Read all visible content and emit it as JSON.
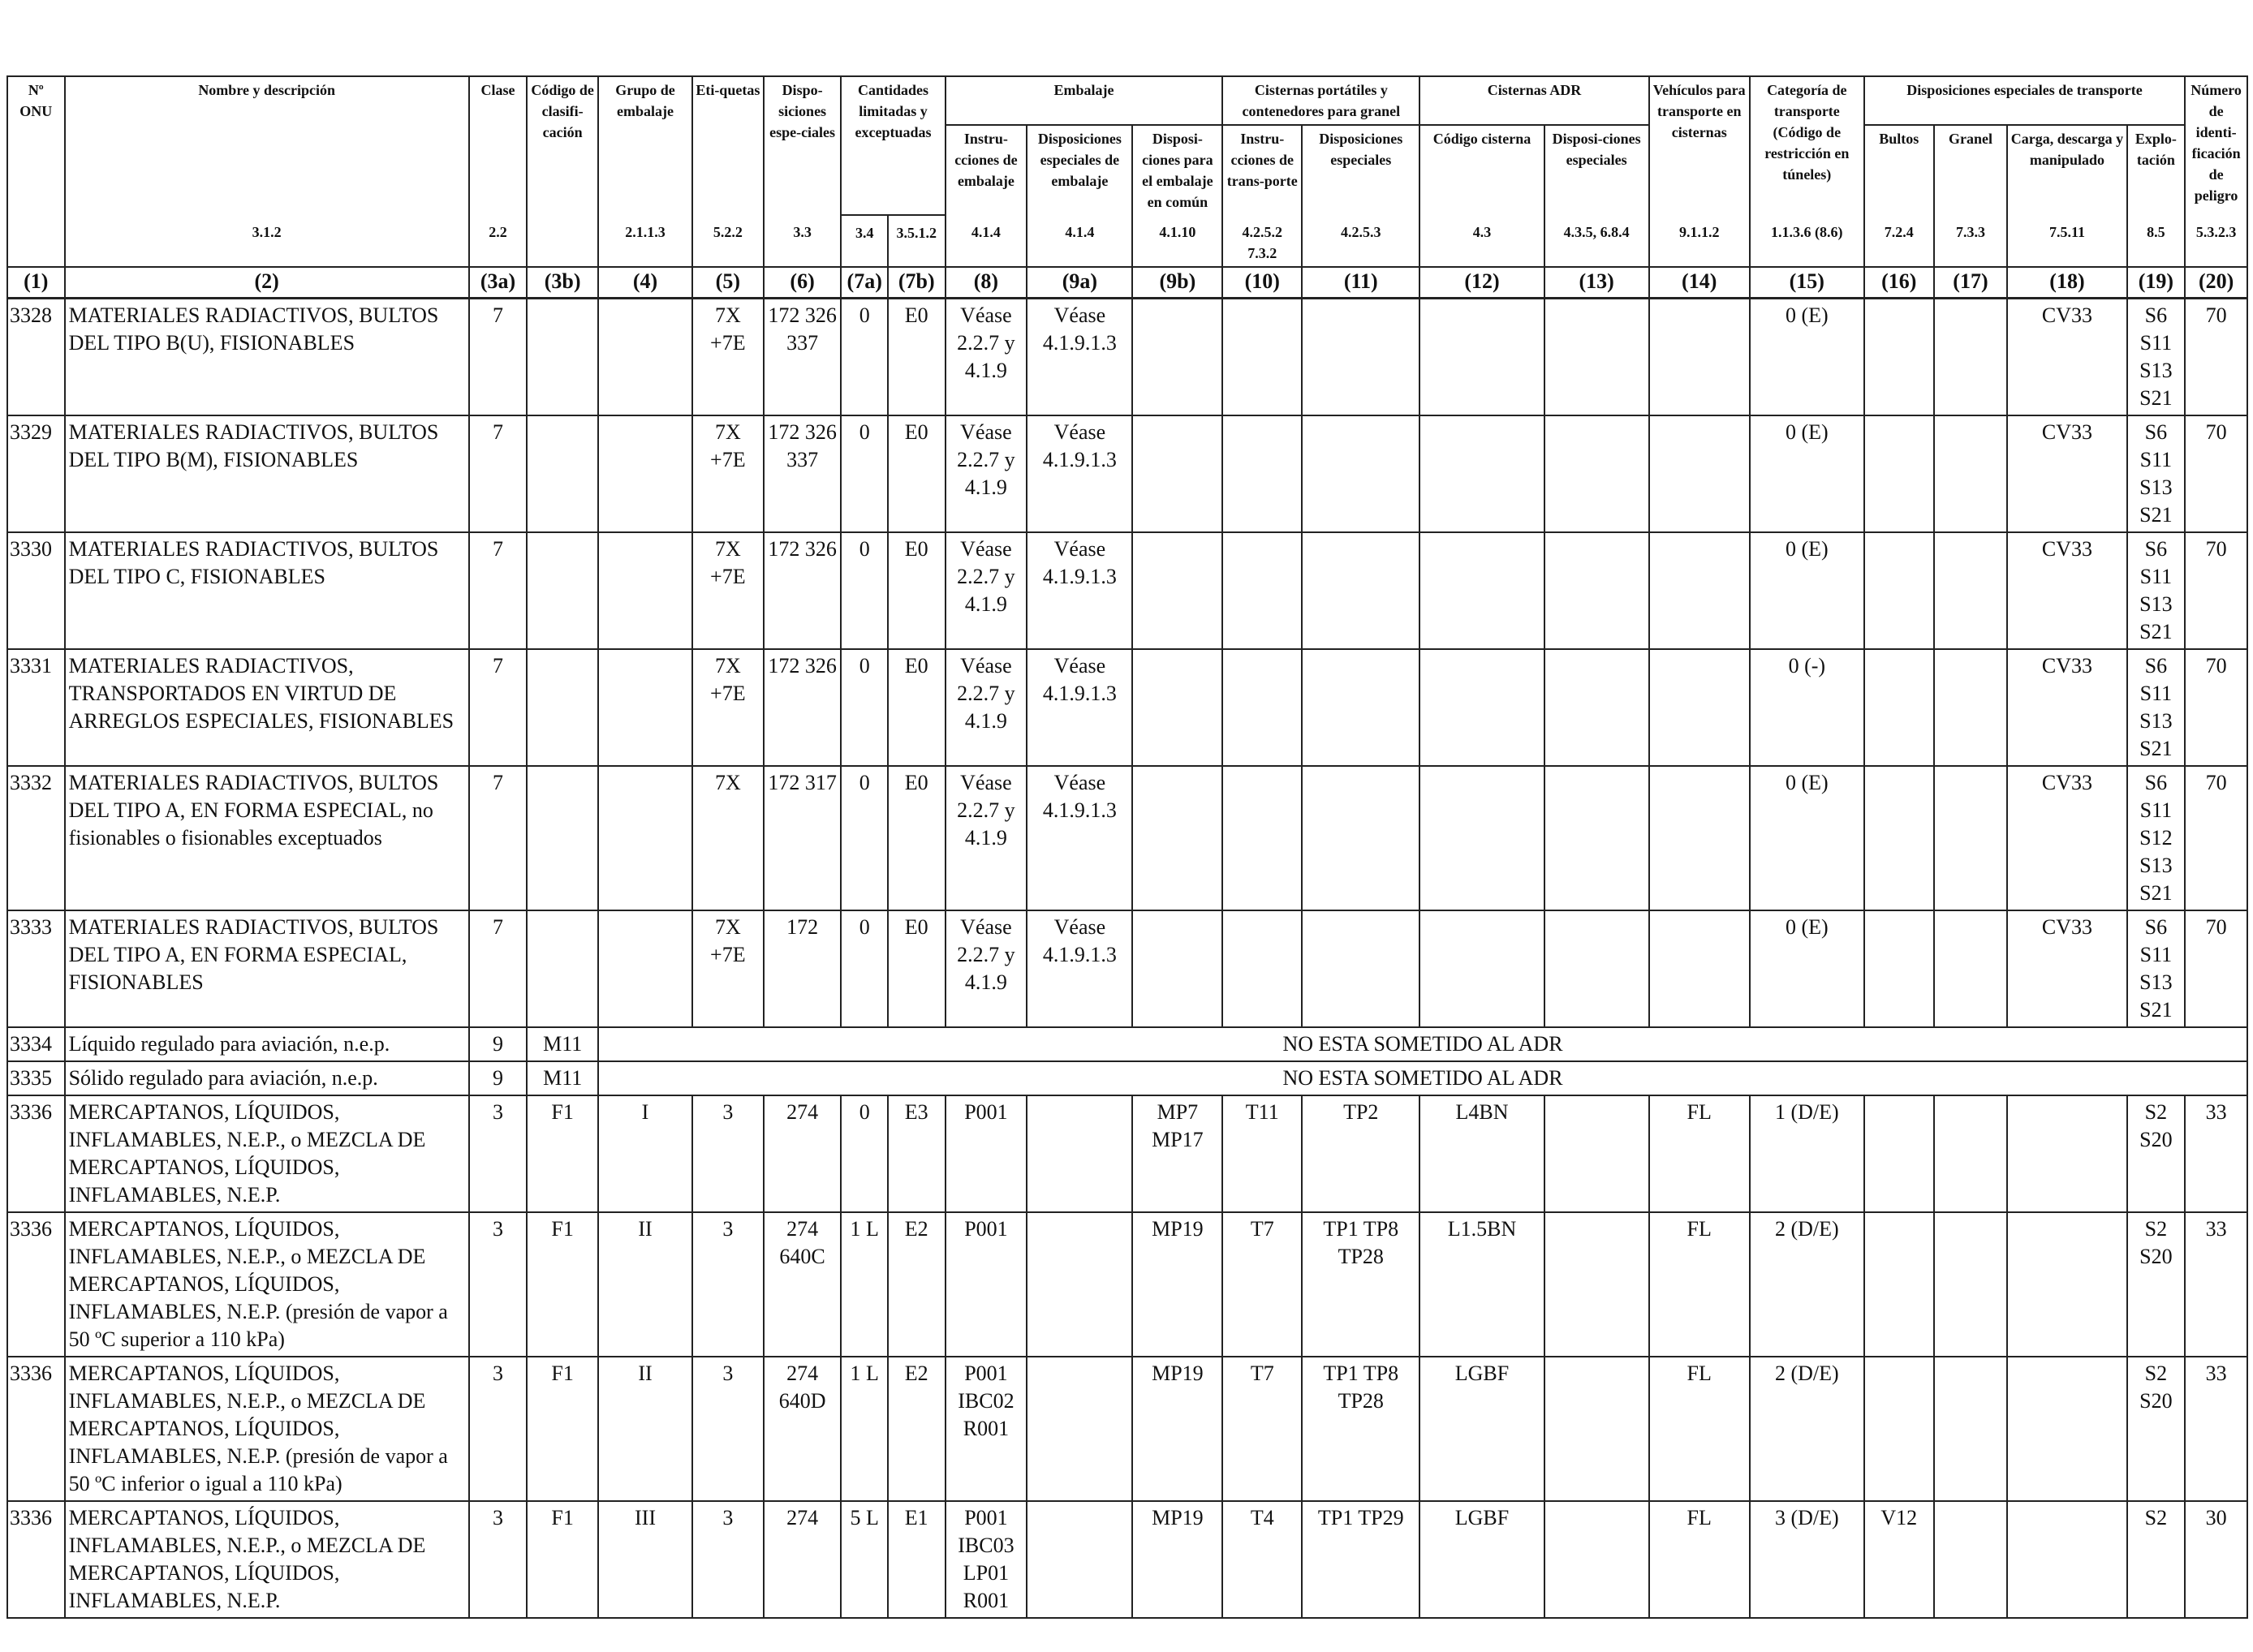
{
  "headers": {
    "c1": "Nº ONU",
    "c2": "Nombre y descripción",
    "c3a": "Clase",
    "c3b": "Código de clasifi-cación",
    "c4": "Grupo de embalaje",
    "c5": "Eti-quetas",
    "c6": "Dispo-siciones espe-ciales",
    "c7": "Cantidades limitadas y exceptuadas",
    "c8_9": "Embalaje",
    "c8": "Instru-cciones de embalaje",
    "c9a": "Disposiciones especiales de embalaje",
    "c9b": "Disposi-ciones para el embalaje en común",
    "c10_11": "Cisternas portátiles y contenedores para granel",
    "c10": "Instru-cciones de trans-porte",
    "c11": "Disposiciones especiales",
    "c12_13": "Cisternas ADR",
    "c12": "Código cisterna",
    "c13": "Disposi-ciones especiales",
    "c14": "Vehículos para transporte en cisternas",
    "c15": "Categoría de transporte (Código de restricción en túneles)",
    "c16_19": "Disposiciones especiales de transporte",
    "c16": "Bultos",
    "c17": "Granel",
    "c18": "Carga, descarga y manipulado",
    "c19": "Explo-tación",
    "c20": "Número de identi-ficación de peligro"
  },
  "refs": {
    "c2": "3.1.2",
    "c3a": "2.2",
    "c4": "2.1.1.3",
    "c5": "5.2.2",
    "c6": "3.3",
    "c7a": "3.4",
    "c7b": "3.5.1.2",
    "c8": "4.1.4",
    "c9a": "4.1.4",
    "c9b": "4.1.10",
    "c10": "4.2.5.2 7.3.2",
    "c11": "4.2.5.3",
    "c12": "4.3",
    "c13": "4.3.5, 6.8.4",
    "c14": "9.1.1.2",
    "c15": "1.1.3.6 (8.6)",
    "c16": "7.2.4",
    "c17": "7.3.3",
    "c18": "7.5.11",
    "c19": "8.5",
    "c20": "5.3.2.3"
  },
  "numbers": [
    "(1)",
    "(2)",
    "(3a)",
    "(3b)",
    "(4)",
    "(5)",
    "(6)",
    "(7a)",
    "(7b)",
    "(8)",
    "(9a)",
    "(9b)",
    "(10)",
    "(11)",
    "(12)",
    "(13)",
    "(14)",
    "(15)",
    "(16)",
    "(17)",
    "(18)",
    "(19)",
    "(20)"
  ],
  "rows": [
    {
      "c1": "3328",
      "c2": "MATERIALES RADIACTIVOS, BULTOS DEL TIPO B(U), FISIONABLES",
      "c3a": "7",
      "c3b": "",
      "c4": "",
      "c5": "7X +7E",
      "c6": "172 326 337",
      "c7a": "0",
      "c7b": "E0",
      "c8": "Véase 2.2.7 y 4.1.9",
      "c9a": "Véase 4.1.9.1.3",
      "c9b": "",
      "c10": "",
      "c11": "",
      "c12": "",
      "c13": "",
      "c14": "",
      "c15": "0 (E)",
      "c16": "",
      "c17": "",
      "c18": "CV33",
      "c19": "S6 S11 S13 S21",
      "c20": "70"
    },
    {
      "c1": "3329",
      "c2": "MATERIALES RADIACTIVOS, BULTOS DEL TIPO B(M), FISIONABLES",
      "c3a": "7",
      "c3b": "",
      "c4": "",
      "c5": "7X +7E",
      "c6": "172 326 337",
      "c7a": "0",
      "c7b": "E0",
      "c8": "Véase 2.2.7 y 4.1.9",
      "c9a": "Véase 4.1.9.1.3",
      "c9b": "",
      "c10": "",
      "c11": "",
      "c12": "",
      "c13": "",
      "c14": "",
      "c15": "0 (E)",
      "c16": "",
      "c17": "",
      "c18": "CV33",
      "c19": "S6 S11 S13 S21",
      "c20": "70"
    },
    {
      "c1": "3330",
      "c2": "MATERIALES RADIACTIVOS, BULTOS DEL TIPO C, FISIONABLES",
      "c3a": "7",
      "c3b": "",
      "c4": "",
      "c5": "7X +7E",
      "c6": "172 326",
      "c7a": "0",
      "c7b": "E0",
      "c8": "Véase 2.2.7 y 4.1.9",
      "c9a": "Véase 4.1.9.1.3",
      "c9b": "",
      "c10": "",
      "c11": "",
      "c12": "",
      "c13": "",
      "c14": "",
      "c15": "0 (E)",
      "c16": "",
      "c17": "",
      "c18": "CV33",
      "c19": "S6 S11 S13 S21",
      "c20": "70"
    },
    {
      "c1": "3331",
      "c2": "MATERIALES RADIACTIVOS, TRANSPORTADOS EN VIRTUD DE ARREGLOS ESPECIALES, FISIONABLES",
      "c3a": "7",
      "c3b": "",
      "c4": "",
      "c5": "7X +7E",
      "c6": "172 326",
      "c7a": "0",
      "c7b": "E0",
      "c8": "Véase 2.2.7 y 4.1.9",
      "c9a": "Véase 4.1.9.1.3",
      "c9b": "",
      "c10": "",
      "c11": "",
      "c12": "",
      "c13": "",
      "c14": "",
      "c15": "0 (-)",
      "c16": "",
      "c17": "",
      "c18": "CV33",
      "c19": "S6 S11 S13 S21",
      "c20": "70"
    },
    {
      "c1": "3332",
      "c2": "MATERIALES RADIACTIVOS, BULTOS DEL TIPO A, EN FORMA ESPECIAL, no fisionables o fisionables exceptuados",
      "c3a": "7",
      "c3b": "",
      "c4": "",
      "c5": "7X",
      "c6": "172 317",
      "c7a": "0",
      "c7b": "E0",
      "c8": "Véase 2.2.7 y 4.1.9",
      "c9a": "Véase 4.1.9.1.3",
      "c9b": "",
      "c10": "",
      "c11": "",
      "c12": "",
      "c13": "",
      "c14": "",
      "c15": "0 (E)",
      "c16": "",
      "c17": "",
      "c18": "CV33",
      "c19": "S6 S11 S12 S13 S21",
      "c20": "70"
    },
    {
      "c1": "3333",
      "c2": "MATERIALES RADIACTIVOS, BULTOS DEL TIPO A, EN FORMA ESPECIAL, FISIONABLES",
      "c3a": "7",
      "c3b": "",
      "c4": "",
      "c5": "7X +7E",
      "c6": "172",
      "c7a": "0",
      "c7b": "E0",
      "c8": "Véase 2.2.7 y 4.1.9",
      "c9a": "Véase 4.1.9.1.3",
      "c9b": "",
      "c10": "",
      "c11": "",
      "c12": "",
      "c13": "",
      "c14": "",
      "c15": "0 (E)",
      "c16": "",
      "c17": "",
      "c18": "CV33",
      "c19": "S6 S11 S13 S21",
      "c20": "70"
    },
    {
      "c1": "3334",
      "c2": "Líquido regulado para aviación, n.e.p.",
      "c3a": "9",
      "c3b": "M11",
      "note": "NO ESTA SOMETIDO AL ADR"
    },
    {
      "c1": "3335",
      "c2": "Sólido regulado para aviación, n.e.p.",
      "c3a": "9",
      "c3b": "M11",
      "note": "NO ESTA SOMETIDO AL ADR"
    },
    {
      "c1": "3336",
      "c2": "MERCAPTANOS, LÍQUIDOS, INFLAMABLES, N.E.P., o MEZCLA DE MERCAPTANOS, LÍQUIDOS, INFLAMABLES, N.E.P.",
      "c3a": "3",
      "c3b": "F1",
      "c4": "I",
      "c5": "3",
      "c6": "274",
      "c7a": "0",
      "c7b": "E3",
      "c8": "P001",
      "c9a": "",
      "c9b": "MP7 MP17",
      "c10": "T11",
      "c11": "TP2",
      "c12": "L4BN",
      "c13": "",
      "c14": "FL",
      "c15": "1 (D/E)",
      "c16": "",
      "c17": "",
      "c18": "",
      "c19": "S2 S20",
      "c20": "33"
    },
    {
      "c1": "3336",
      "c2": "MERCAPTANOS, LÍQUIDOS, INFLAMABLES, N.E.P., o MEZCLA DE MERCAPTANOS, LÍQUIDOS, INFLAMABLES, N.E.P. (presión de vapor a 50 ºC superior a 110 kPa)",
      "c3a": "3",
      "c3b": "F1",
      "c4": "II",
      "c5": "3",
      "c6": "274 640C",
      "c7a": "1 L",
      "c7b": "E2",
      "c8": "P001",
      "c9a": "",
      "c9b": "MP19",
      "c10": "T7",
      "c11": "TP1 TP8 TP28",
      "c12": "L1.5BN",
      "c13": "",
      "c14": "FL",
      "c15": "2 (D/E)",
      "c16": "",
      "c17": "",
      "c18": "",
      "c19": "S2 S20",
      "c20": "33"
    },
    {
      "c1": "3336",
      "c2": "MERCAPTANOS, LÍQUIDOS, INFLAMABLES, N.E.P., o MEZCLA DE MERCAPTANOS, LÍQUIDOS, INFLAMABLES, N.E.P. (presión de vapor a 50 ºC inferior o igual a 110 kPa)",
      "c3a": "3",
      "c3b": "F1",
      "c4": "II",
      "c5": "3",
      "c6": "274 640D",
      "c7a": "1 L",
      "c7b": "E2",
      "c8": "P001 IBC02 R001",
      "c9a": "",
      "c9b": "MP19",
      "c10": "T7",
      "c11": "TP1 TP8 TP28",
      "c12": "LGBF",
      "c13": "",
      "c14": "FL",
      "c15": "2 (D/E)",
      "c16": "",
      "c17": "",
      "c18": "",
      "c19": "S2 S20",
      "c20": "33"
    },
    {
      "c1": "3336",
      "c2": "MERCAPTANOS, LÍQUIDOS, INFLAMABLES, N.E.P., o MEZCLA DE MERCAPTANOS, LÍQUIDOS, INFLAMABLES, N.E.P.",
      "c3a": "3",
      "c3b": "F1",
      "c4": "III",
      "c5": "3",
      "c6": "274",
      "c7a": "5 L",
      "c7b": "E1",
      "c8": "P001 IBC03 LP01 R001",
      "c9a": "",
      "c9b": "MP19",
      "c10": "T4",
      "c11": "TP1 TP29",
      "c12": "LGBF",
      "c13": "",
      "c14": "FL",
      "c15": "3 (D/E)",
      "c16": "V12",
      "c17": "",
      "c18": "",
      "c19": "S2",
      "c20": "30"
    }
  ]
}
